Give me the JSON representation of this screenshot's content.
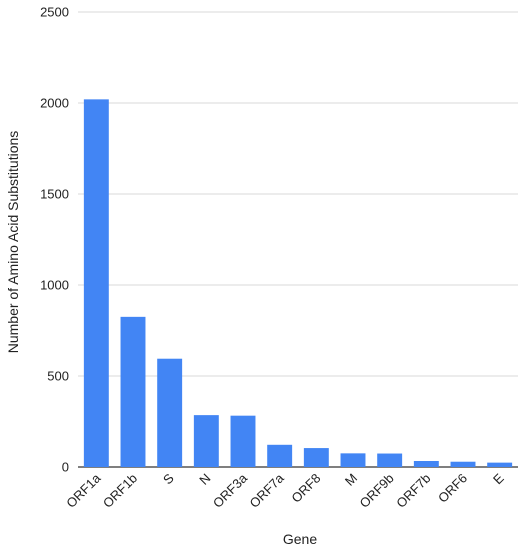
{
  "chart_data": {
    "type": "bar",
    "title": "",
    "xlabel": "Gene",
    "ylabel": "Number of Amino Acid Substitutions",
    "categories": [
      "ORF1a",
      "ORF1b",
      "S",
      "N",
      "ORF3a",
      "ORF7a",
      "ORF8",
      "M",
      "ORF9b",
      "ORF7b",
      "ORF6",
      "E"
    ],
    "values": [
      2020,
      825,
      595,
      285,
      282,
      122,
      104,
      75,
      74,
      33,
      29,
      24
    ],
    "ylim": [
      0,
      2500
    ],
    "yticks": [
      0,
      500,
      1000,
      1500,
      2000,
      2500
    ],
    "grid": true,
    "legend": "none",
    "colors": {
      "bar": "#4285f4",
      "grid": "#d9d9d9",
      "text": "#222222"
    }
  }
}
